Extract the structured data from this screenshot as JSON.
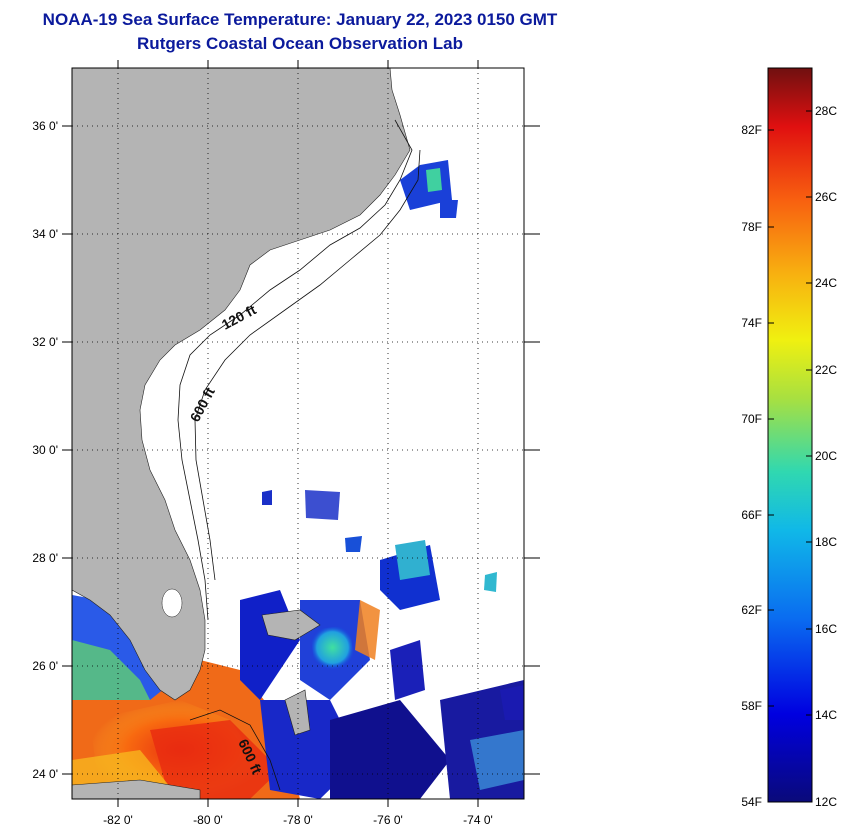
{
  "title": {
    "line1": "NOAA-19 Sea Surface Temperature:  January 22, 2023 0150 GMT",
    "line2": "Rutgers Coastal Ocean Observation Lab"
  },
  "map": {
    "lat_labels": [
      "36 0'",
      "34 0'",
      "32 0'",
      "30 0'",
      "28 0'",
      "26 0'",
      "24 0'"
    ],
    "lon_labels": [
      "-82 0'",
      "-80 0'",
      "-78 0'",
      "-76 0'",
      "-74 0'"
    ],
    "isobath_labels": [
      "120 ft",
      "600 ft",
      "600 ft"
    ],
    "land_color": "#b4b4b4",
    "ocean_nodata_color": "#ffffff"
  },
  "colorbar": {
    "fahrenheit_labels": [
      "82F",
      "78F",
      "74F",
      "70F",
      "66F",
      "62F",
      "58F",
      "54F"
    ],
    "celsius_labels": [
      "28C",
      "26C",
      "24C",
      "22C",
      "20C",
      "18C",
      "16C",
      "14C",
      "12C"
    ]
  }
}
